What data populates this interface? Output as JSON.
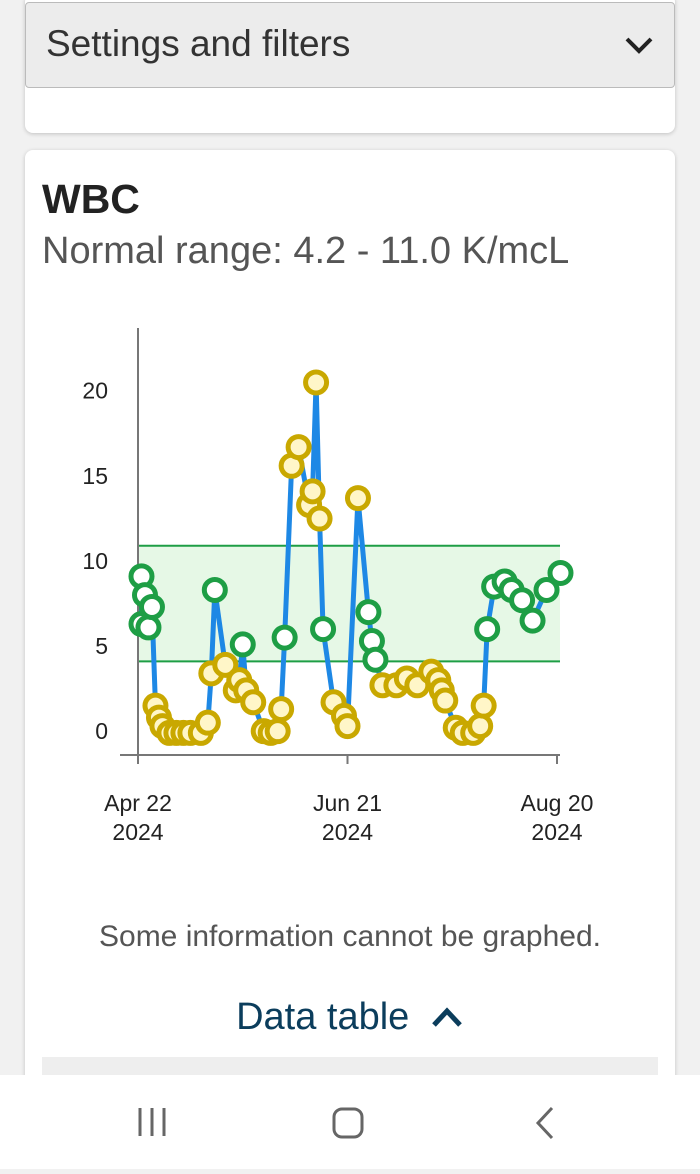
{
  "settings": {
    "title": "Settings and filters"
  },
  "card": {
    "title": "WBC",
    "subtitle": "Normal range: 4.2 - 11.0 K/mcL",
    "note": "Some information cannot be graphed.",
    "data_table": "Data table"
  },
  "chart_data": {
    "type": "line",
    "x": [
      "2024-04-23",
      "2024-04-23",
      "2024-04-24",
      "2024-04-25",
      "2024-04-26",
      "2024-04-27",
      "2024-04-28",
      "2024-04-29",
      "2024-05-01",
      "2024-05-03",
      "2024-05-05",
      "2024-05-07",
      "2024-05-10",
      "2024-05-12",
      "2024-05-13",
      "2024-05-14",
      "2024-05-17",
      "2024-05-20",
      "2024-05-21",
      "2024-05-22",
      "2024-05-23",
      "2024-05-25",
      "2024-05-28",
      "2024-05-30",
      "2024-06-01",
      "2024-06-02",
      "2024-06-03",
      "2024-06-05",
      "2024-06-07",
      "2024-06-10",
      "2024-06-11",
      "2024-06-12",
      "2024-06-13",
      "2024-06-14",
      "2024-06-17",
      "2024-06-20",
      "2024-06-21",
      "2024-06-24",
      "2024-06-27",
      "2024-06-28",
      "2024-06-29",
      "2024-07-01",
      "2024-07-05",
      "2024-07-08",
      "2024-07-11",
      "2024-07-15",
      "2024-07-17",
      "2024-07-18",
      "2024-07-19",
      "2024-07-22",
      "2024-07-24",
      "2024-07-27",
      "2024-07-29",
      "2024-07-30",
      "2024-07-31",
      "2024-08-02",
      "2024-08-05",
      "2024-08-07",
      "2024-08-10",
      "2024-08-13",
      "2024-08-17",
      "2024-08-21"
    ],
    "values": [
      6.4,
      9.2,
      8.1,
      6.2,
      7.4,
      1.6,
      0.9,
      0.4,
      0,
      0,
      0,
      0,
      0,
      0.6,
      3.5,
      8.4,
      4.0,
      2.5,
      3.1,
      5.2,
      2.5,
      1.8,
      0.1,
      0,
      0.1,
      1.4,
      5.6,
      15.7,
      16.8,
      13.4,
      14.2,
      20.6,
      12.6,
      6.1,
      1.8,
      1.0,
      0.4,
      13.8,
      7.1,
      5.4,
      4.3,
      2.8,
      2.8,
      3.2,
      2.8,
      3.6,
      3.1,
      2.5,
      1.9,
      0.3,
      0,
      0,
      0.4,
      1.6,
      6.1,
      8.6,
      8.9,
      8.4,
      7.8,
      6.6,
      8.4,
      9.4
    ],
    "band": [
      4.2,
      11.0
    ],
    "xlim": [
      "2024-04-22",
      "2024-08-20"
    ],
    "xticks": [
      {
        "value": "2024-04-22",
        "label": "Apr 22\n2024"
      },
      {
        "value": "2024-06-21",
        "label": "Jun 21\n2024"
      },
      {
        "value": "2024-08-20",
        "label": "Aug 20\n2024"
      }
    ],
    "ylim": [
      -1.3,
      23.8
    ],
    "yticks": [
      0,
      5,
      10,
      15,
      20
    ],
    "line_color": "#1e88e5",
    "normal_color": "#1e9e45",
    "abnormal_color": "#c9a800",
    "band_color": "#e6f8e6"
  }
}
